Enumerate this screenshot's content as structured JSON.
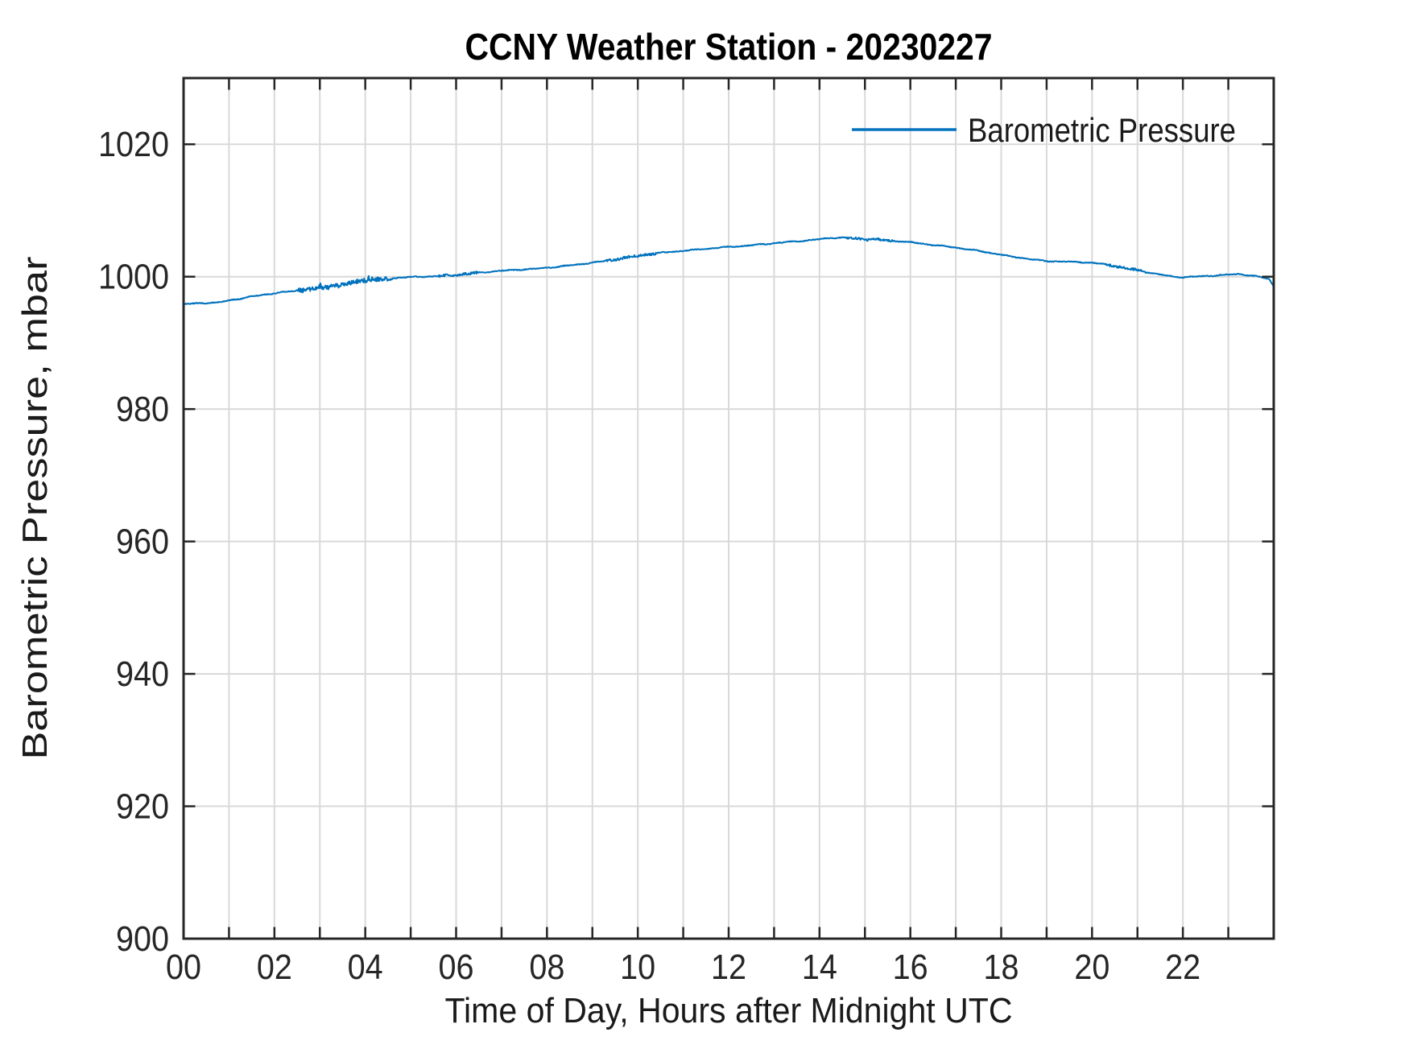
{
  "chart_data": {
    "type": "line",
    "title": "CCNY Weather Station - 20230227",
    "xlabel": "Time of Day, Hours after Midnight UTC",
    "ylabel": "Barometric Pressure, mbar",
    "xlim": [
      0,
      24
    ],
    "ylim": [
      900,
      1030
    ],
    "grid": true,
    "background": "#ffffff",
    "axis_color": "#262626",
    "grid_color": "#d9d9d9",
    "legend": [
      "Barometric Pressure"
    ],
    "legend_position": "top-right-inside",
    "legend_box": false,
    "xticks": [
      0,
      1,
      2,
      3,
      4,
      5,
      6,
      7,
      8,
      9,
      10,
      11,
      12,
      13,
      14,
      15,
      16,
      17,
      18,
      19,
      20,
      21,
      22,
      23,
      24
    ],
    "xtick_label_values": [
      0,
      2,
      4,
      6,
      8,
      10,
      12,
      14,
      16,
      18,
      20,
      22
    ],
    "xtick_label_texts": [
      "00",
      "02",
      "04",
      "06",
      "08",
      "10",
      "12",
      "14",
      "16",
      "18",
      "20",
      "22"
    ],
    "yticks": [
      900,
      920,
      940,
      960,
      980,
      1000,
      1020
    ],
    "ytick_label_texts": [
      "900",
      "920",
      "940",
      "960",
      "980",
      "1000",
      "1020"
    ],
    "series": [
      {
        "name": "Barometric Pressure",
        "color": "#0072bd",
        "x_units": "hours after midnight UTC",
        "y_units": "mbar",
        "points": [
          [
            0,
            995.85
          ],
          [
            0.25,
            995.95
          ],
          [
            0.5,
            996.05
          ],
          [
            0.75,
            996.1
          ],
          [
            1,
            996.4
          ],
          [
            1.25,
            996.7
          ],
          [
            1.5,
            997.0
          ],
          [
            1.75,
            997.25
          ],
          [
            2,
            997.5
          ],
          [
            2.25,
            997.7
          ],
          [
            2.5,
            997.9
          ],
          [
            2.75,
            998.1
          ],
          [
            3,
            998.3
          ],
          [
            3.25,
            998.5
          ],
          [
            3.5,
            998.8
          ],
          [
            3.75,
            999.1
          ],
          [
            4,
            999.45
          ],
          [
            4.25,
            999.6
          ],
          [
            4.5,
            999.7
          ],
          [
            4.75,
            999.85
          ],
          [
            5,
            999.95
          ],
          [
            5.25,
            1000.0
          ],
          [
            5.5,
            1000.05
          ],
          [
            5.75,
            1000.15
          ],
          [
            6,
            1000.3
          ],
          [
            6.25,
            1000.45
          ],
          [
            6.5,
            1000.6
          ],
          [
            6.75,
            1000.75
          ],
          [
            7,
            1000.9
          ],
          [
            7.25,
            1001.0
          ],
          [
            7.5,
            1001.1
          ],
          [
            7.75,
            1001.2
          ],
          [
            8,
            1001.35
          ],
          [
            8.25,
            1001.5
          ],
          [
            8.5,
            1001.7
          ],
          [
            8.75,
            1001.9
          ],
          [
            9,
            1002.1
          ],
          [
            9.25,
            1002.35
          ],
          [
            9.5,
            1002.6
          ],
          [
            9.75,
            1002.9
          ],
          [
            10,
            1003.15
          ],
          [
            10.25,
            1003.4
          ],
          [
            10.5,
            1003.6
          ],
          [
            10.75,
            1003.75
          ],
          [
            11,
            1003.9
          ],
          [
            11.25,
            1004.05
          ],
          [
            11.5,
            1004.2
          ],
          [
            11.75,
            1004.35
          ],
          [
            12,
            1004.5
          ],
          [
            12.25,
            1004.6
          ],
          [
            12.5,
            1004.75
          ],
          [
            12.75,
            1004.9
          ],
          [
            13,
            1005.05
          ],
          [
            13.25,
            1005.2
          ],
          [
            13.5,
            1005.35
          ],
          [
            13.75,
            1005.5
          ],
          [
            14,
            1005.65
          ],
          [
            14.25,
            1005.85
          ],
          [
            14.5,
            1005.9
          ],
          [
            14.75,
            1005.8
          ],
          [
            15,
            1005.6
          ],
          [
            15.25,
            1005.65
          ],
          [
            15.5,
            1005.45
          ],
          [
            15.75,
            1005.35
          ],
          [
            16,
            1005.2
          ],
          [
            16.25,
            1005.0
          ],
          [
            16.5,
            1004.8
          ],
          [
            16.75,
            1004.6
          ],
          [
            17,
            1004.4
          ],
          [
            17.25,
            1004.15
          ],
          [
            17.5,
            1003.9
          ],
          [
            17.75,
            1003.6
          ],
          [
            18,
            1003.3
          ],
          [
            18.25,
            1003.0
          ],
          [
            18.5,
            1002.8
          ],
          [
            18.75,
            1002.55
          ],
          [
            19,
            1002.35
          ],
          [
            19.25,
            1002.3
          ],
          [
            19.5,
            1002.25
          ],
          [
            19.75,
            1002.2
          ],
          [
            20,
            1002.1
          ],
          [
            20.25,
            1001.9
          ],
          [
            20.5,
            1001.6
          ],
          [
            20.75,
            1001.3
          ],
          [
            21,
            1001.0
          ],
          [
            21.25,
            1000.65
          ],
          [
            21.5,
            1000.3
          ],
          [
            21.75,
            1000.05
          ],
          [
            22,
            999.9
          ],
          [
            22.25,
            1000.0
          ],
          [
            22.5,
            1000.1
          ],
          [
            22.75,
            1000.2
          ],
          [
            23,
            1000.3
          ],
          [
            23.25,
            1000.4
          ],
          [
            23.5,
            1000.15
          ],
          [
            23.75,
            999.9
          ],
          [
            23.9,
            999.65
          ],
          [
            24,
            998.5
          ]
        ]
      }
    ]
  }
}
